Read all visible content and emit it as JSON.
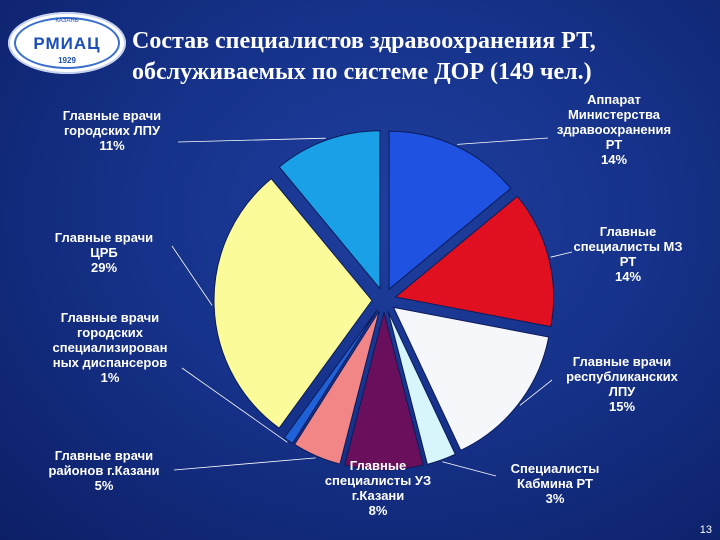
{
  "logo": {
    "text": "РМИАЦ",
    "year": "1929",
    "city": "КАЗАНЬ"
  },
  "title": {
    "line1": "Состав специалистов здравоохранения РТ,",
    "line2": "обслуживаемых по системе ДОР (149 чел.)"
  },
  "page_number": "13",
  "chart_data": {
    "type": "pie",
    "title": "Состав специалистов здравоохранения РТ, обслуживаемых по системе ДОР (149 чел.)",
    "exploded": true,
    "start": "12 o'clock, clockwise",
    "slices": [
      {
        "label": [
          "Аппарат",
          "Министерства",
          "здравоохранения",
          "РТ"
        ],
        "value": 14,
        "value_label": "14%",
        "color": "#1f52e0"
      },
      {
        "label": [
          "Главные",
          "специалисты МЗ",
          "РТ"
        ],
        "value": 14,
        "value_label": "14%",
        "color": "#e01020"
      },
      {
        "label": [
          "Главные врачи",
          "республиканских",
          "ЛПУ"
        ],
        "value": 15,
        "value_label": "15%",
        "color": "#f6f7fb"
      },
      {
        "label": [
          "Специалисты",
          "Кабмина РТ"
        ],
        "value": 3,
        "value_label": "3%",
        "color": "#d7f6fb"
      },
      {
        "label": [
          "Главные",
          "специалисты УЗ",
          "г.Казани"
        ],
        "value": 8,
        "value_label": "8%",
        "color": "#6a0f5c"
      },
      {
        "label": [
          "Главные врачи",
          "районов г.Казани"
        ],
        "value": 5,
        "value_label": "5%",
        "color": "#f28585"
      },
      {
        "label": [
          "Главные врачи",
          "городских",
          "специализирован",
          "ных диспансеров"
        ],
        "value": 1,
        "value_label": "1%",
        "color": "#1f62d8"
      },
      {
        "label": [
          "Главные врачи",
          "ЦРБ"
        ],
        "value": 29,
        "value_label": "29%",
        "color": "#fbfb9a"
      },
      {
        "label": [
          "Главные врачи",
          "городских ЛПУ"
        ],
        "value": 11,
        "value_label": "11%",
        "color": "#1aa0e6"
      }
    ]
  }
}
